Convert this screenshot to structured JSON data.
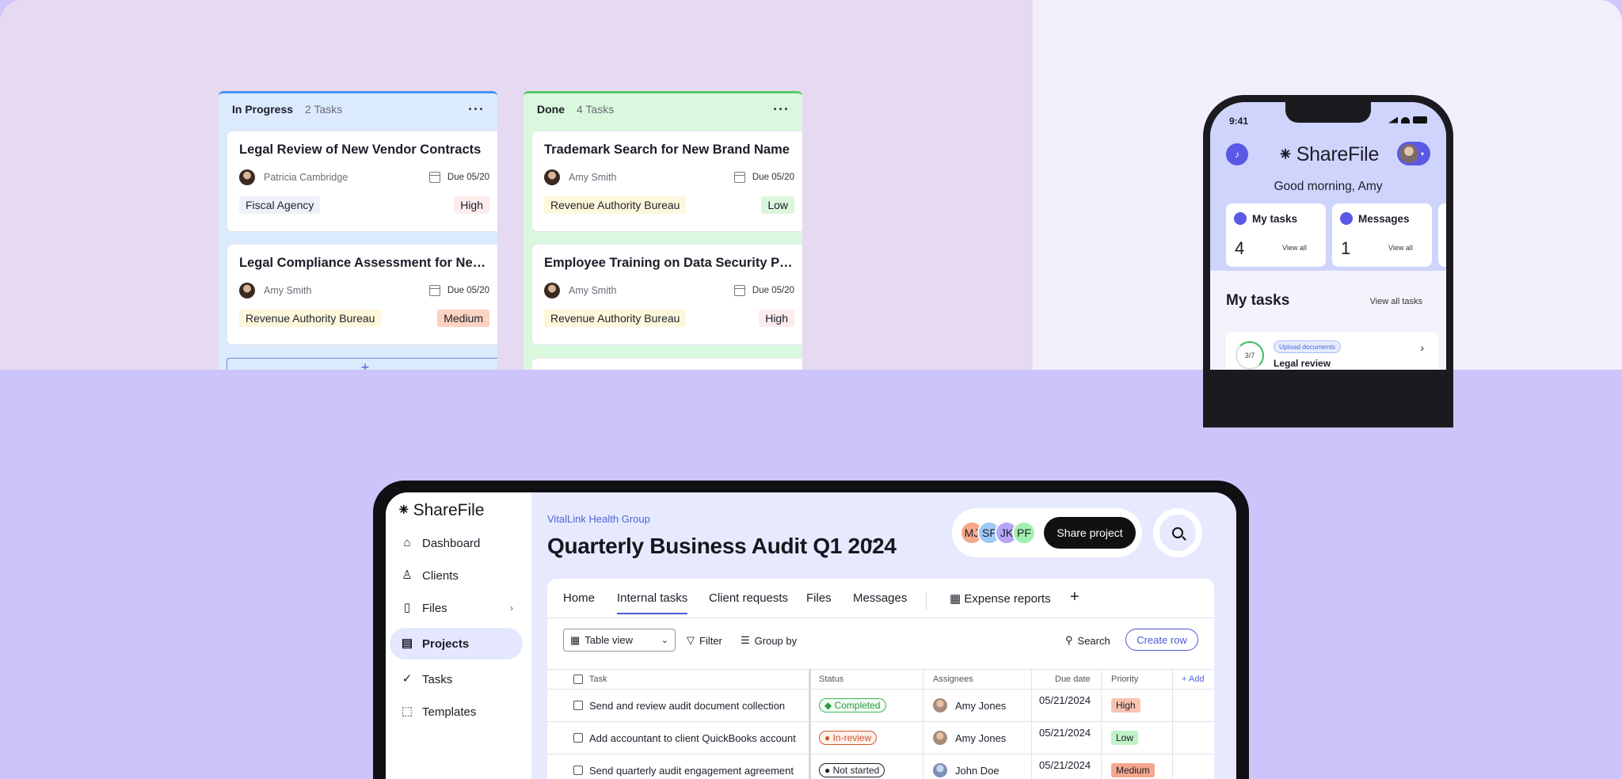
{
  "kanban": {
    "in_progress": {
      "name": "In Progress",
      "count": "2 Tasks",
      "cards": [
        {
          "title": "Legal Review of New Vendor Contracts",
          "assignee": "Patricia Cambridge",
          "due": "Due 05/20",
          "tag": "Fiscal Agency",
          "priority": "High"
        },
        {
          "title": "Legal Compliance Assessment for New C...",
          "assignee": "Amy Smith",
          "due": "Due 05/20",
          "tag": "Revenue Authority Bureau",
          "priority": "Medium"
        }
      ],
      "add_label": "+"
    },
    "done": {
      "name": "Done",
      "count": "4 Tasks",
      "cards": [
        {
          "title": "Trademark Search for New Brand Name",
          "assignee": "Amy Smith",
          "due": "Due 05/20",
          "tag": "Revenue Authority Bureau",
          "priority": "Low"
        },
        {
          "title": "Employee Training on Data Security Polici...",
          "assignee": "Amy Smith",
          "due": "Due 05/20",
          "tag": "Revenue Authority Bureau",
          "priority": "High"
        }
      ]
    },
    "more_label": "···"
  },
  "phone": {
    "time": "9:41",
    "logo": "ShareFile",
    "logo_star": "⁕",
    "greeting": "Good morning, Amy",
    "cards": [
      {
        "title": "My tasks",
        "count": "4",
        "link": "View all"
      },
      {
        "title": "Messages",
        "count": "1",
        "link": "View all"
      }
    ],
    "section_title": "My tasks",
    "view_all_tasks": "View all tasks",
    "task": {
      "progress": "3/7",
      "chip": "Upload documents",
      "name": "Legal review",
      "arrow": "›"
    }
  },
  "app": {
    "brand": "ShareFile",
    "brand_star": "⁕",
    "nav": [
      {
        "label": "Dashboard",
        "icon": "⌂"
      },
      {
        "label": "Clients",
        "icon": "♙"
      },
      {
        "label": "Files",
        "icon": "▯",
        "chevron": "›"
      },
      {
        "label": "Projects",
        "icon": "▤"
      },
      {
        "label": "Tasks",
        "icon": "✓"
      },
      {
        "label": "Templates",
        "icon": "⬚"
      }
    ],
    "org": "VitalLink Health Group",
    "title": "Quarterly Business Audit Q1 2024",
    "title_more": "···",
    "avatars": [
      {
        "initials": "MJ",
        "color": "#f4a98c"
      },
      {
        "initials": "SF",
        "color": "#9cc9f5"
      },
      {
        "initials": "JK",
        "color": "#b6a6f5"
      },
      {
        "initials": "PF",
        "color": "#a3efb0"
      }
    ],
    "share_label": "Share project",
    "tabs": [
      "Home",
      "Internal tasks",
      "Client requests",
      "Files",
      "Messages",
      "Expense reports"
    ],
    "tab_add": "+",
    "toolbar": {
      "view": "Table view",
      "filter": "Filter",
      "group": "Group by",
      "search": "Search",
      "create": "Create row"
    },
    "columns": [
      "Task",
      "Status",
      "Assignees",
      "Due date",
      "Priority",
      "+ Add"
    ],
    "rows": [
      {
        "task": "Send and review audit document collection",
        "status": "Completed",
        "assignee": "Amy Jones",
        "due": "05/21/2024",
        "priority": "High"
      },
      {
        "task": "Add accountant to client QuickBooks account",
        "status": "In-review",
        "assignee": "Amy Jones",
        "due": "05/21/2024",
        "priority": "Low"
      },
      {
        "task": "Send quarterly audit engagement agreement",
        "status": "Not started",
        "assignee": "John Doe",
        "due": "05/21/2024",
        "priority": "Medium"
      }
    ]
  }
}
